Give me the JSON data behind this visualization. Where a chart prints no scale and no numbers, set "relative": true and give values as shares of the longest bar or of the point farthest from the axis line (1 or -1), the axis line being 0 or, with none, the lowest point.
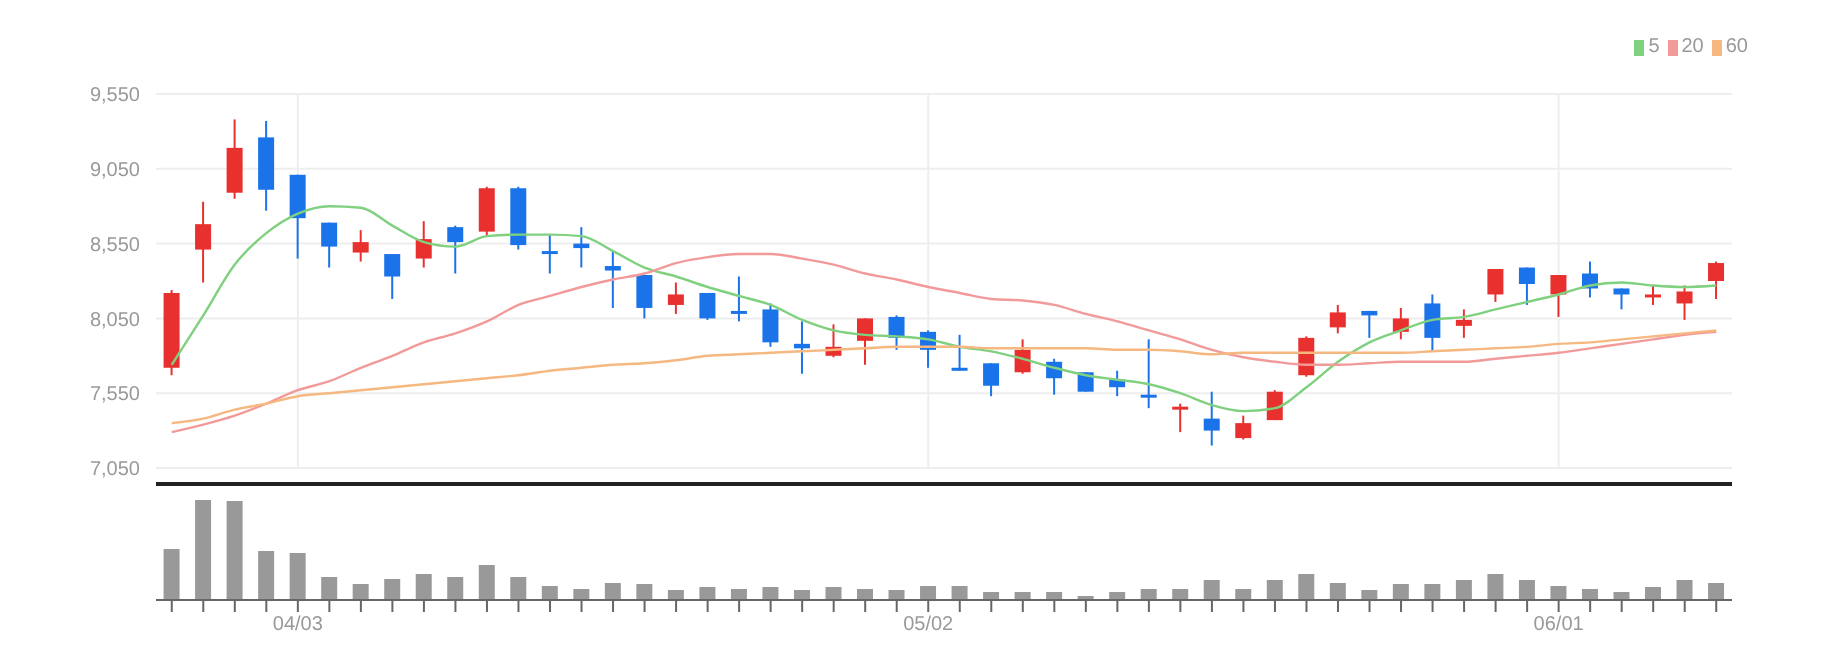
{
  "chart_data": [
    {
      "type": "candlestick",
      "categories": [
        null,
        null,
        null,
        null,
        null,
        null,
        null,
        null,
        null,
        null,
        null,
        null,
        null,
        null,
        null,
        null,
        null,
        null,
        null,
        null,
        null,
        null,
        null,
        null,
        null,
        null,
        null,
        null,
        null,
        null,
        null,
        null,
        null,
        null,
        null,
        null,
        null,
        null,
        null,
        null,
        null,
        null,
        null,
        null,
        null,
        null,
        null,
        null,
        null,
        null
      ],
      "ohlc": [
        [
          7720,
          8240,
          7670,
          8220
        ],
        [
          8510,
          8830,
          8290,
          8680
        ],
        [
          8890,
          9380,
          8850,
          9190
        ],
        [
          9260,
          9370,
          8770,
          8910
        ],
        [
          9010,
          9010,
          8450,
          8720
        ],
        [
          8690,
          8690,
          8390,
          8530
        ],
        [
          8490,
          8640,
          8430,
          8560
        ],
        [
          8480,
          8480,
          8180,
          8330
        ],
        [
          8450,
          8700,
          8390,
          8580
        ],
        [
          8660,
          8670,
          8350,
          8560
        ],
        [
          8630,
          8930,
          8600,
          8920
        ],
        [
          8920,
          8930,
          8510,
          8540
        ],
        [
          8500,
          8610,
          8350,
          8480
        ],
        [
          8550,
          8660,
          8390,
          8520
        ],
        [
          8400,
          8500,
          8120,
          8370
        ],
        [
          8340,
          8340,
          8050,
          8120
        ],
        [
          8140,
          8290,
          8080,
          8210
        ],
        [
          8220,
          8220,
          8040,
          8050
        ],
        [
          8100,
          8330,
          8030,
          8080
        ],
        [
          8110,
          8150,
          7860,
          7890
        ],
        [
          7880,
          8030,
          7680,
          7850
        ],
        [
          7800,
          8010,
          7790,
          7860
        ],
        [
          7900,
          8050,
          7740,
          8050
        ],
        [
          8060,
          8070,
          7840,
          7920
        ],
        [
          7960,
          7970,
          7720,
          7840
        ],
        [
          7720,
          7940,
          7700,
          7700
        ],
        [
          7750,
          7750,
          7530,
          7600
        ],
        [
          7690,
          7910,
          7680,
          7840
        ],
        [
          7760,
          7780,
          7540,
          7650
        ],
        [
          7690,
          7690,
          7560,
          7560
        ],
        [
          7640,
          7700,
          7530,
          7590
        ],
        [
          7540,
          7910,
          7450,
          7530
        ],
        [
          7450,
          7480,
          7290,
          7460
        ],
        [
          7380,
          7560,
          7200,
          7300
        ],
        [
          7250,
          7400,
          7240,
          7350
        ],
        [
          7370,
          7570,
          7370,
          7560
        ],
        [
          7670,
          7930,
          7660,
          7920
        ],
        [
          7990,
          8140,
          7950,
          8090
        ],
        [
          8100,
          8100,
          7920,
          8070
        ],
        [
          7960,
          8120,
          7910,
          8050
        ],
        [
          8150,
          8210,
          7830,
          7920
        ],
        [
          8000,
          8110,
          7920,
          8040
        ],
        [
          8210,
          8380,
          8160,
          8380
        ],
        [
          8390,
          8390,
          8140,
          8280
        ],
        [
          8210,
          8340,
          8060,
          8340
        ],
        [
          8350,
          8430,
          8190,
          8250
        ],
        [
          8250,
          8250,
          8110,
          8210
        ],
        [
          8190,
          8270,
          8140,
          8210
        ],
        [
          8150,
          8270,
          8040,
          8230
        ],
        [
          8300,
          8430,
          8180,
          8420
        ]
      ],
      "colors": [
        "#e8312f",
        "#e8312f",
        "#e8312f",
        "#1a73e8",
        "#1a73e8",
        "#1a73e8",
        "#e8312f",
        "#1a73e8",
        "#e8312f",
        "#1a73e8",
        "#e8312f",
        "#1a73e8",
        "#1a73e8",
        "#1a73e8",
        "#1a73e8",
        "#1a73e8",
        "#e8312f",
        "#1a73e8",
        "#1a73e8",
        "#1a73e8",
        "#1a73e8",
        "#e8312f",
        "#e8312f",
        "#1a73e8",
        "#1a73e8",
        "#1a73e8",
        "#1a73e8",
        "#e8312f",
        "#1a73e8",
        "#1a73e8",
        "#1a73e8",
        "#1a73e8",
        "#e8312f",
        "#1a73e8",
        "#e8312f",
        "#e8312f",
        "#e8312f",
        "#e8312f",
        "#1a73e8",
        "#e8312f",
        "#1a73e8",
        "#e8312f",
        "#e8312f",
        "#1a73e8",
        "#e8312f",
        "#1a73e8",
        "#1a73e8",
        "#e8312f",
        "#e8312f",
        "#e8312f"
      ],
      "series": [
        {
          "type": "line",
          "name": "5",
          "color": "#7fd07f",
          "values": [
            7740,
            8070,
            8410,
            8620,
            8750,
            8800,
            8790,
            8670,
            8560,
            8530,
            8600,
            8610,
            8610,
            8600,
            8500,
            8390,
            8330,
            8260,
            8200,
            8140,
            8040,
            7970,
            7940,
            7930,
            7910,
            7860,
            7830,
            7780,
            7720,
            7670,
            7640,
            7610,
            7550,
            7470,
            7430,
            7450,
            7590,
            7760,
            7890,
            7970,
            8040,
            8060,
            8110,
            8160,
            8210,
            8270,
            8290,
            8270,
            8260,
            8270
          ]
        },
        {
          "type": "line",
          "name": "20",
          "color": "#f29a9a",
          "values": [
            7290,
            7340,
            7400,
            7480,
            7570,
            7630,
            7720,
            7800,
            7890,
            7950,
            8030,
            8140,
            8200,
            8260,
            8310,
            8350,
            8420,
            8460,
            8480,
            8480,
            8450,
            8410,
            8350,
            8310,
            8260,
            8220,
            8180,
            8170,
            8140,
            8080,
            8030,
            7970,
            7910,
            7840,
            7790,
            7760,
            7740,
            7740,
            7750,
            7760,
            7760,
            7760,
            7780,
            7800,
            7820,
            7850,
            7880,
            7910,
            7940,
            7960
          ]
        },
        {
          "type": "line",
          "name": "60",
          "color": "#f5b880",
          "values": [
            7350,
            7380,
            7440,
            7480,
            7530,
            7550,
            7570,
            7590,
            7610,
            7630,
            7650,
            7670,
            7700,
            7720,
            7740,
            7750,
            7770,
            7800,
            7810,
            7820,
            7830,
            7840,
            7850,
            7860,
            7860,
            7860,
            7850,
            7850,
            7850,
            7850,
            7840,
            7840,
            7830,
            7810,
            7820,
            7820,
            7820,
            7820,
            7820,
            7820,
            7830,
            7840,
            7850,
            7860,
            7880,
            7890,
            7910,
            7930,
            7950,
            7970
          ]
        }
      ],
      "ylim": [
        7050,
        9550
      ],
      "yticks": [
        {
          "value": 7050,
          "label": "7,050"
        },
        {
          "value": 7550,
          "label": "7,550"
        },
        {
          "value": 8050,
          "label": "8,050"
        },
        {
          "value": 8550,
          "label": "8,550"
        },
        {
          "value": 9050,
          "label": "9,050"
        },
        {
          "value": 9550,
          "label": "9,550"
        }
      ],
      "grid": true,
      "legend": "top right",
      "tick_labels": "y"
    },
    {
      "type": "bar",
      "relative": true,
      "color": "#999999",
      "categories": [
        null,
        null,
        null,
        null,
        "04/03",
        null,
        null,
        null,
        null,
        null,
        null,
        null,
        null,
        null,
        null,
        null,
        null,
        null,
        null,
        null,
        null,
        null,
        null,
        null,
        "05/02",
        null,
        null,
        null,
        null,
        null,
        null,
        null,
        null,
        null,
        null,
        null,
        null,
        null,
        null,
        null,
        null,
        null,
        null,
        null,
        "06/01",
        null,
        null,
        null,
        null,
        null
      ],
      "values": [
        0.51,
        1,
        0.99,
        0.49,
        0.47,
        0.23,
        0.16,
        0.21,
        0.26,
        0.23,
        0.35,
        0.23,
        0.14,
        0.11,
        0.17,
        0.16,
        0.1,
        0.13,
        0.11,
        0.13,
        0.1,
        0.13,
        0.11,
        0.1,
        0.14,
        0.14,
        0.08,
        0.08,
        0.08,
        0.04,
        0.08,
        0.11,
        0.11,
        0.2,
        0.11,
        0.2,
        0.26,
        0.17,
        0.1,
        0.16,
        0.16,
        0.2,
        0.26,
        0.2,
        0.14,
        0.11,
        0.08,
        0.13,
        0.2,
        0.17
      ]
    }
  ]
}
